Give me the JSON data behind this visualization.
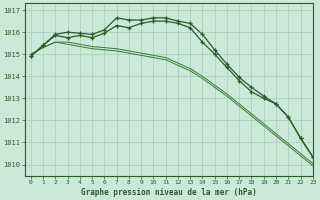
{
  "title": "Graphe pression niveau de la mer (hPa)",
  "background_color": "#cce8d8",
  "grid_color": "#aaccbb",
  "line_color_dark": "#2d5a2d",
  "line_color_med": "#3a7a3a",
  "xlim": [
    -0.5,
    23
  ],
  "ylim": [
    1009.5,
    1017.3
  ],
  "yticks": [
    1010,
    1011,
    1012,
    1013,
    1014,
    1015,
    1016,
    1017
  ],
  "xticks": [
    0,
    1,
    2,
    3,
    4,
    5,
    6,
    7,
    8,
    9,
    10,
    11,
    12,
    13,
    14,
    15,
    16,
    17,
    18,
    19,
    20,
    21,
    22,
    23
  ],
  "series_marked1": [
    1014.9,
    1015.4,
    1015.9,
    1016.0,
    1015.95,
    1015.9,
    1016.1,
    1016.65,
    1016.55,
    1016.55,
    1016.65,
    1016.65,
    1016.5,
    1016.4,
    1015.9,
    1015.2,
    1014.55,
    1013.95,
    1013.5,
    1013.1,
    1012.75,
    1012.15,
    1011.2,
    1010.35
  ],
  "series_marked2": [
    1014.9,
    1015.4,
    1015.85,
    1015.75,
    1015.85,
    1015.75,
    1015.95,
    1016.3,
    1016.2,
    1016.4,
    1016.5,
    1016.5,
    1016.4,
    1016.2,
    1015.55,
    1015.0,
    1014.4,
    1013.8,
    1013.3,
    1013.0,
    1012.75,
    1012.15,
    1011.2,
    1010.35
  ],
  "series_linear1": [
    1015.0,
    1015.3,
    1015.55,
    1015.55,
    1015.45,
    1015.35,
    1015.3,
    1015.25,
    1015.15,
    1015.05,
    1014.95,
    1014.85,
    1014.6,
    1014.35,
    1014.0,
    1013.6,
    1013.2,
    1012.75,
    1012.3,
    1011.85,
    1011.4,
    1010.95,
    1010.5,
    1010.05
  ],
  "series_linear2": [
    1015.0,
    1015.3,
    1015.55,
    1015.45,
    1015.35,
    1015.25,
    1015.2,
    1015.15,
    1015.05,
    1014.95,
    1014.85,
    1014.75,
    1014.5,
    1014.25,
    1013.9,
    1013.5,
    1013.1,
    1012.65,
    1012.2,
    1011.75,
    1011.3,
    1010.85,
    1010.4,
    1009.95
  ]
}
